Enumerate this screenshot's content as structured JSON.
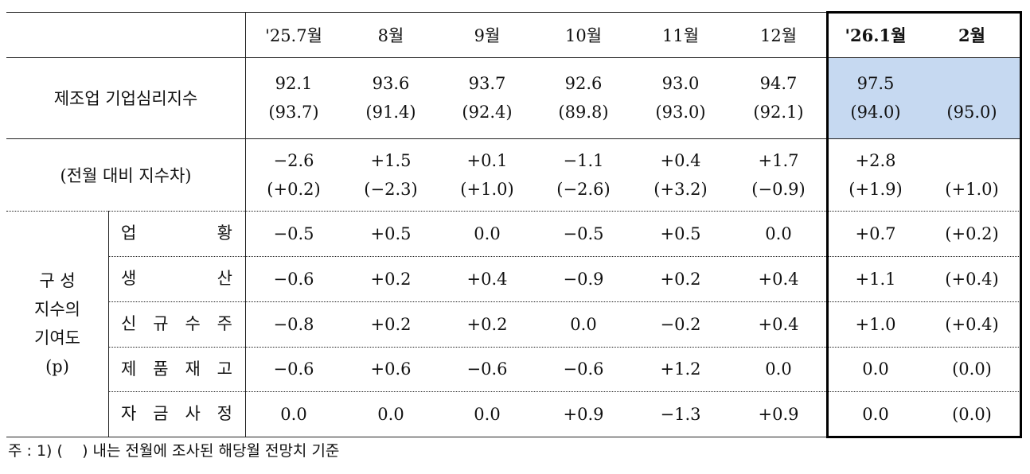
{
  "header": {
    "columns": [
      "'25.7월",
      "8월",
      "9월",
      "10월",
      "11월",
      "12월",
      "'26.1월",
      "2월"
    ]
  },
  "rows": [
    {
      "label": "제조업 기업심리지수",
      "cells": [
        {
          "value": "92.1",
          "prior": "(93.7)"
        },
        {
          "value": "93.6",
          "prior": "(91.4)"
        },
        {
          "value": "93.7",
          "prior": "(92.4)"
        },
        {
          "value": "92.6",
          "prior": "(89.8)"
        },
        {
          "value": "93.0",
          "prior": "(93.0)"
        },
        {
          "value": "94.7",
          "prior": "(92.1)"
        },
        {
          "value": "97.5",
          "prior": "(94.0)"
        },
        {
          "prior": "(95.0)"
        }
      ]
    },
    {
      "label": "(전월 대비 지수차)",
      "cells": [
        {
          "value": "−2.6",
          "prior": "(+0.2)"
        },
        {
          "value": "+1.5",
          "prior": "(−2.3)"
        },
        {
          "value": "+0.1",
          "prior": "(+1.0)"
        },
        {
          "value": "−1.1",
          "prior": "(−2.6)"
        },
        {
          "value": "+0.4",
          "prior": "(+3.2)"
        },
        {
          "value": "+1.7",
          "prior": "(−0.9)"
        },
        {
          "value": "+2.8",
          "prior": "(+1.9)"
        },
        {
          "prior": "(+1.0)"
        }
      ]
    }
  ],
  "components": {
    "label": [
      "구 성",
      "지수의",
      "기여도",
      "(p)"
    ],
    "rows": [
      {
        "label": "업 황",
        "cells": [
          "−0.5",
          "+0.5",
          "0.0",
          "−0.5",
          "+0.5",
          "0.0",
          "+0.7",
          "(+0.2)"
        ]
      },
      {
        "label": "생 산",
        "cells": [
          "−0.6",
          "+0.2",
          "+0.4",
          "−0.9",
          "+0.2",
          "+0.4",
          "+1.1",
          "(+0.4)"
        ]
      },
      {
        "label": "신 규 수 주",
        "cells": [
          "−0.8",
          "+0.2",
          "+0.2",
          "0.0",
          "−0.2",
          "+0.4",
          "+1.0",
          "(+0.4)"
        ]
      },
      {
        "label": "제 품 재 고",
        "cells": [
          "−0.6",
          "+0.6",
          "−0.6",
          "−0.6",
          "+1.2",
          "0.0",
          "0.0",
          "(0.0)"
        ]
      },
      {
        "label": "자 금 사 정",
        "cells": [
          "0.0",
          "0.0",
          "0.0",
          "+0.9",
          "−1.3",
          "+0.9",
          "0.0",
          "(0.0)"
        ]
      }
    ]
  },
  "note": "주 : 1) (    ) 내는 전월에 조사된 해당월 전망치 기준"
}
